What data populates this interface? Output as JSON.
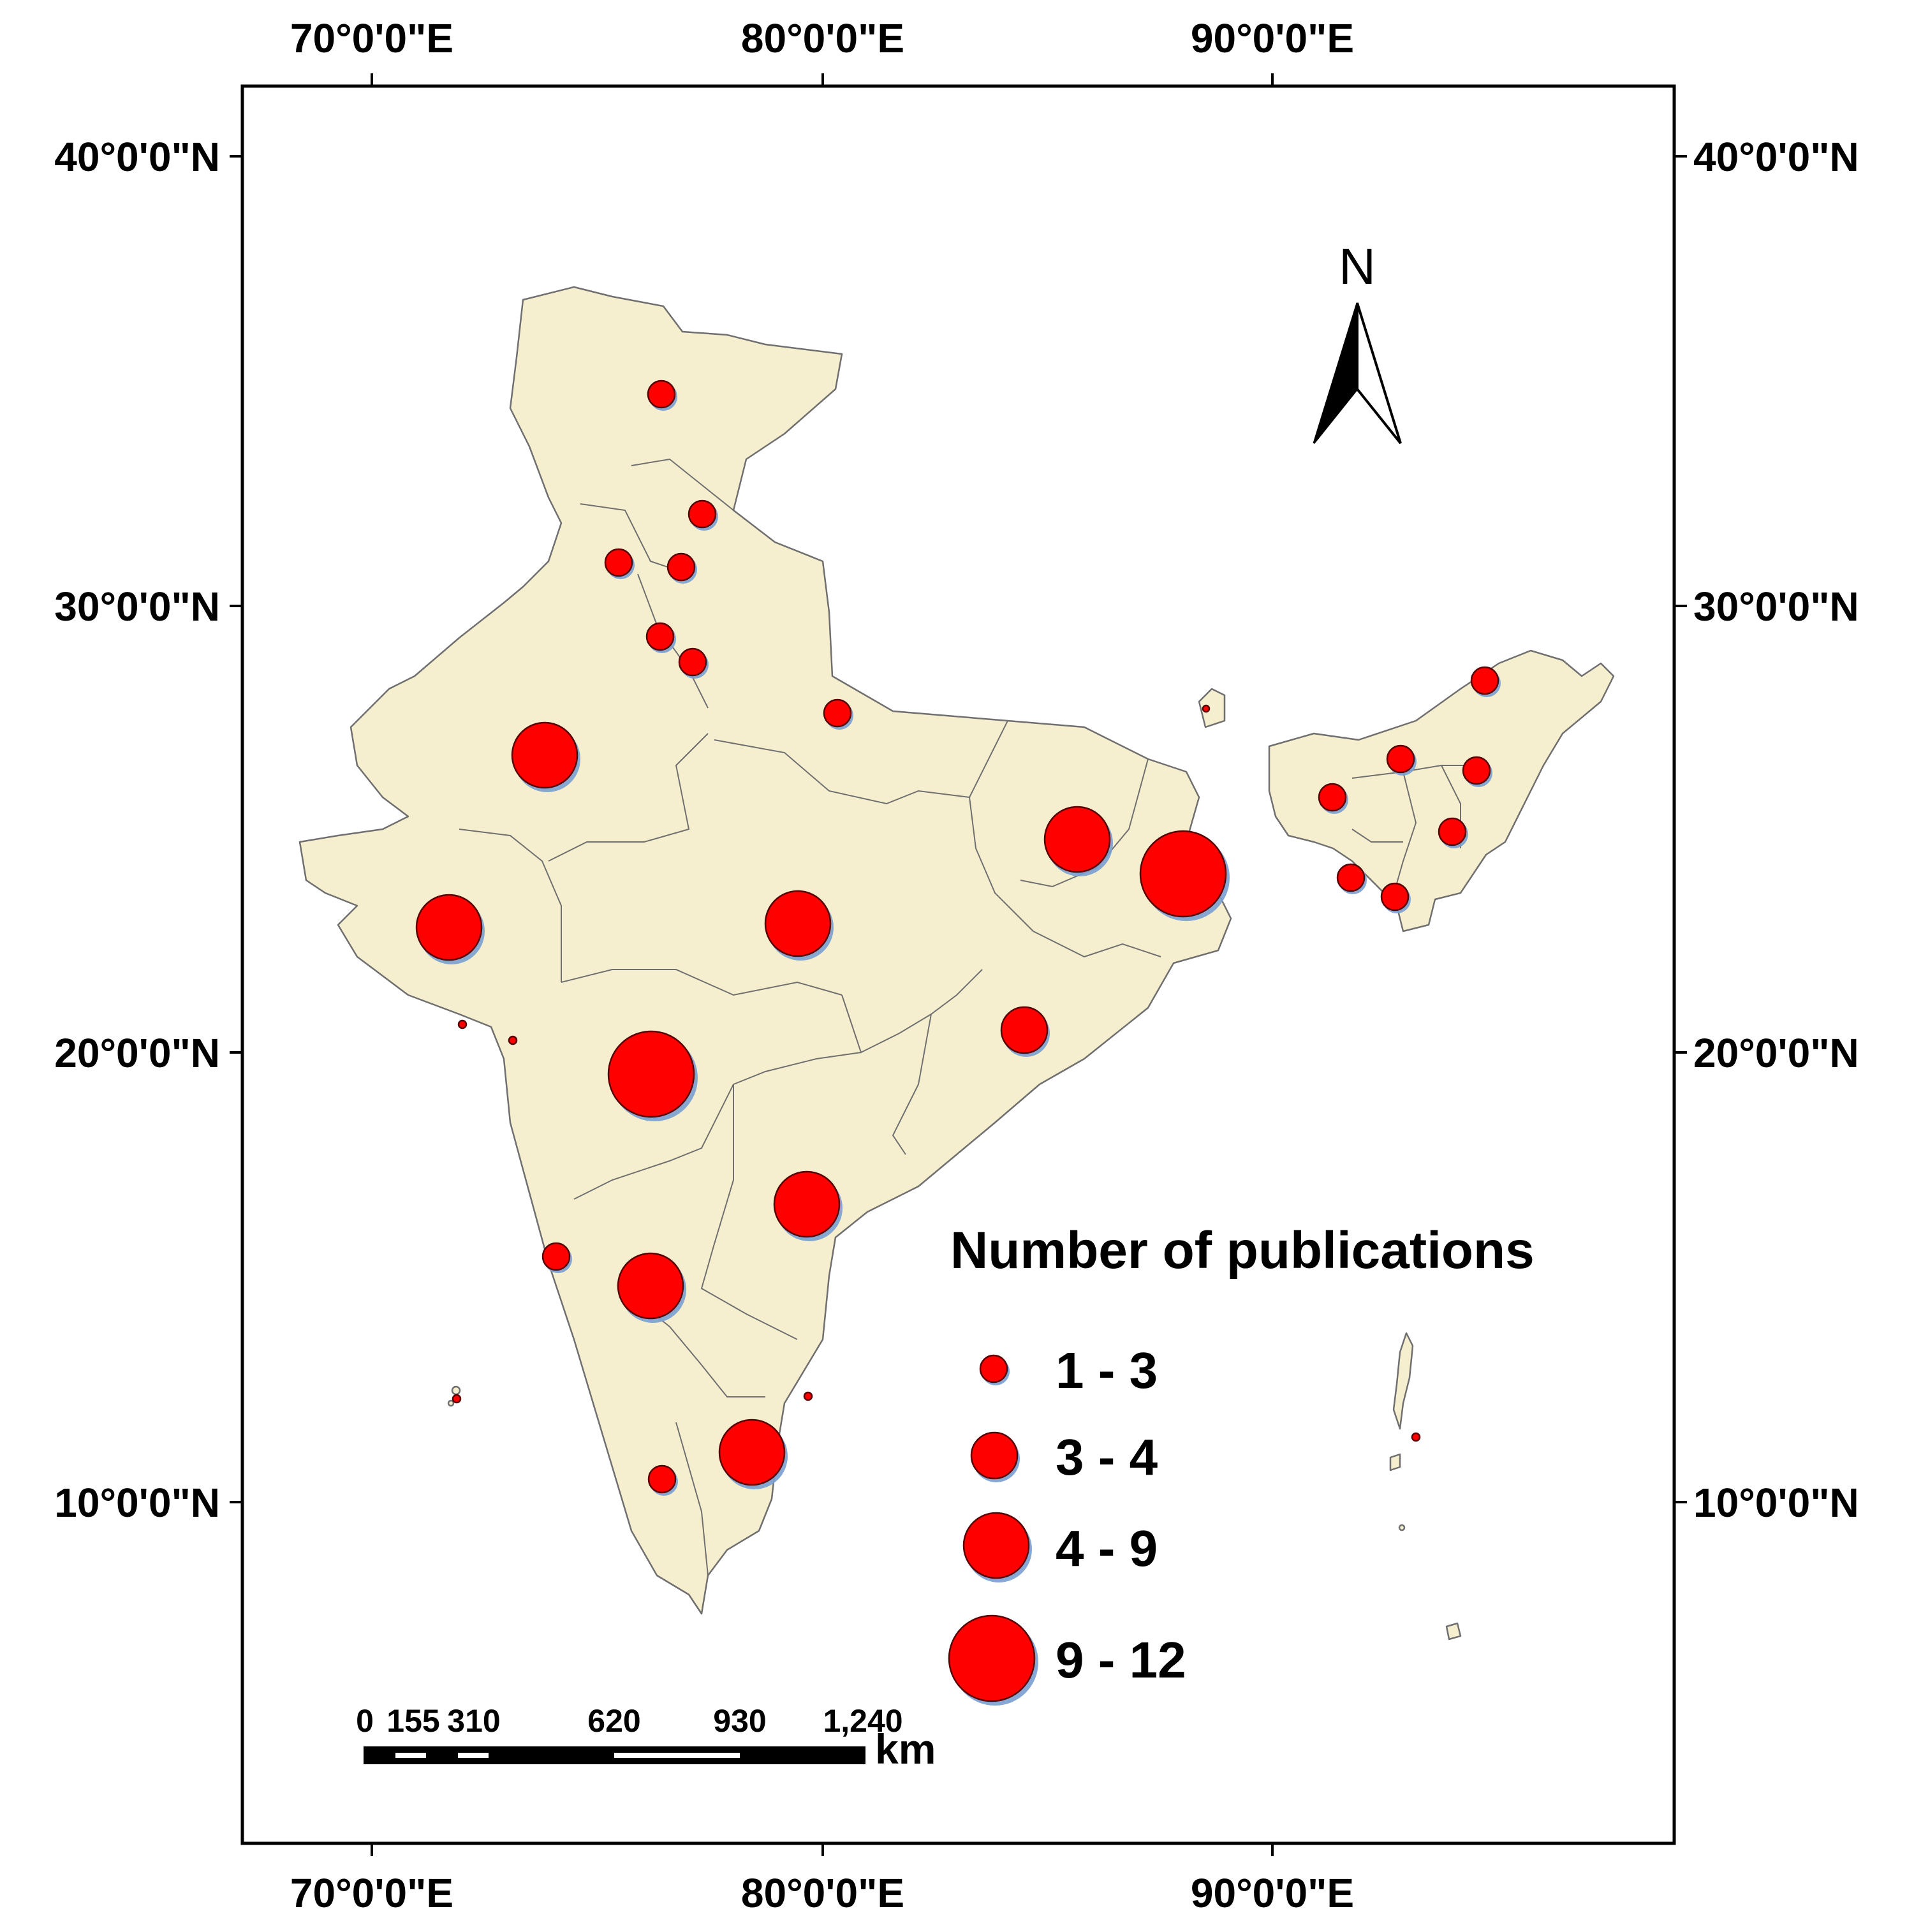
{
  "map": {
    "longitude_labels": [
      "70°0'0\"E",
      "80°0'0\"E",
      "90°0'0\"E"
    ],
    "latitude_labels": [
      "40°0'0\"N",
      "30°0'0\"N",
      "20°0'0\"N",
      "10°0'0\"N"
    ],
    "north_arrow_label": "N",
    "colors": {
      "land": "#f6efcf",
      "state_border": "#6f6f6f",
      "marker": "#ff0000",
      "frame": "#000000"
    }
  },
  "legend": {
    "title": "Number of publications",
    "classes": [
      {
        "label": "1 - 3"
      },
      {
        "label": "3 - 4"
      },
      {
        "label": "4 - 9"
      },
      {
        "label": "9 - 12"
      }
    ]
  },
  "scale_bar": {
    "labels": [
      "0",
      "155",
      "310",
      "620",
      "930",
      "1,240"
    ],
    "unit": "km"
  }
}
